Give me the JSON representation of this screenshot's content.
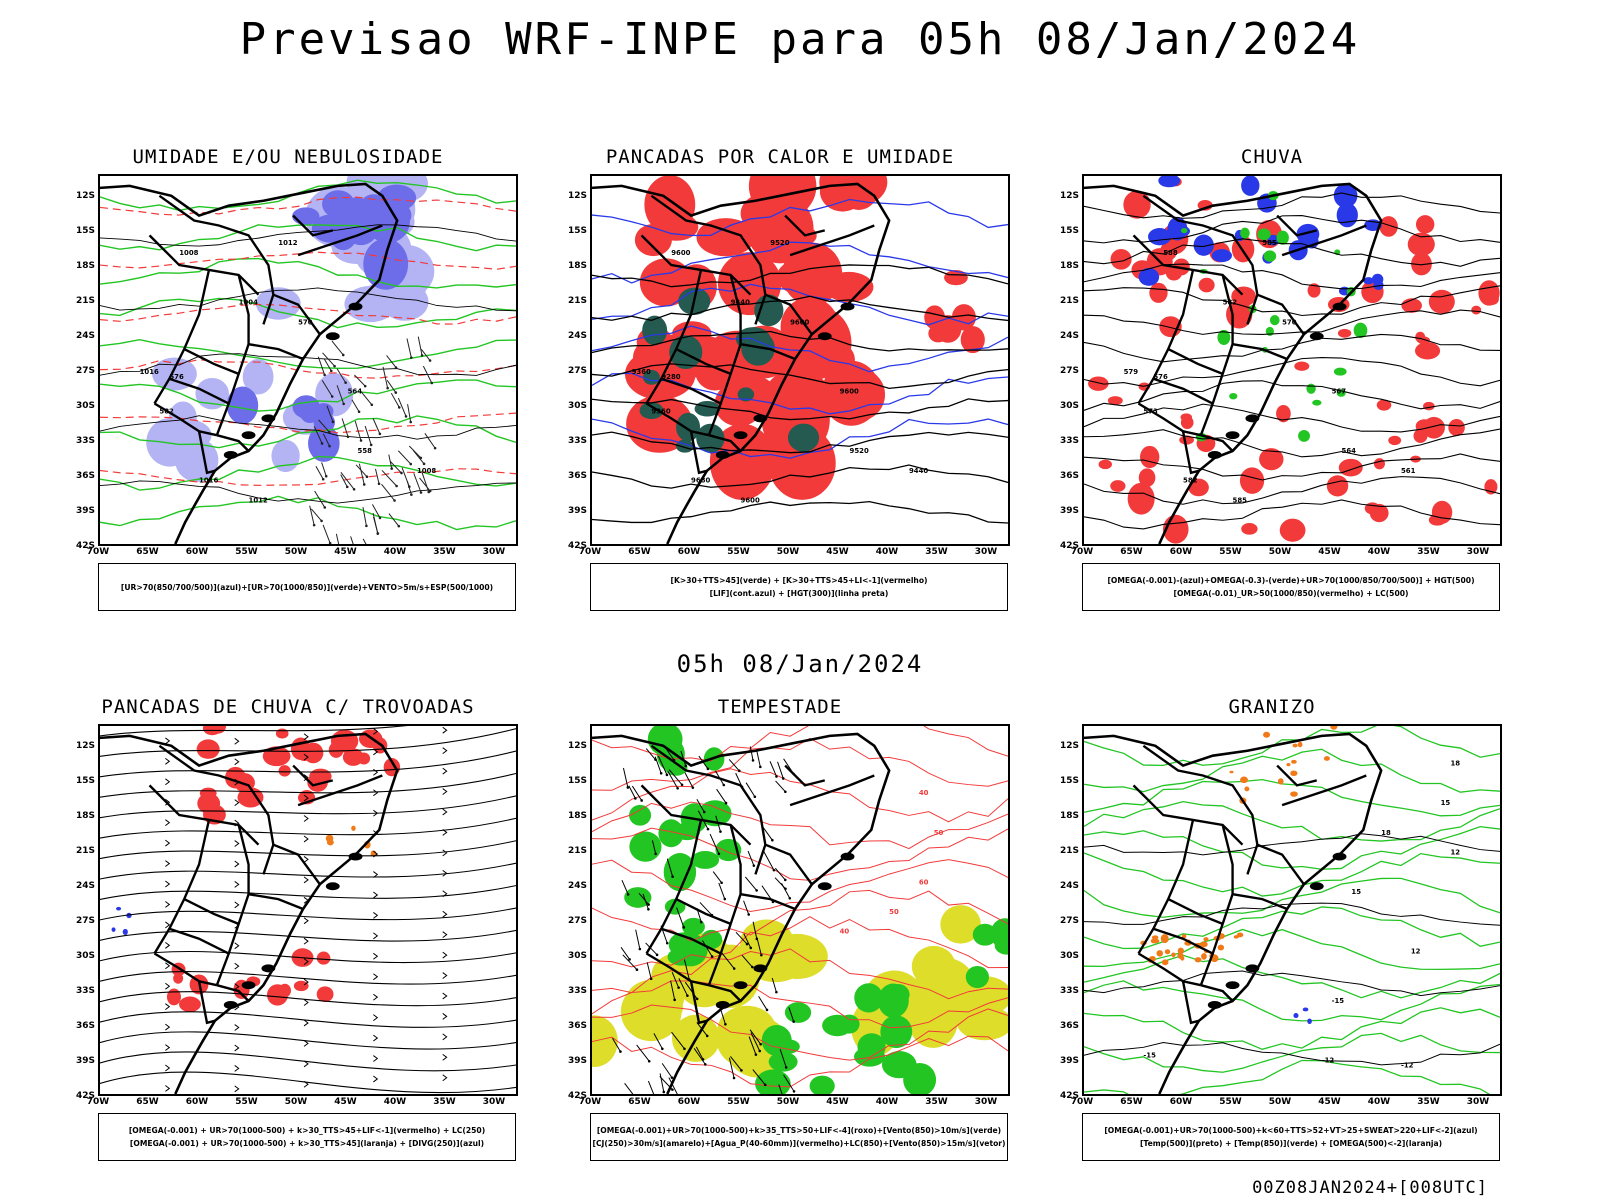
{
  "header": {
    "title": "Previsao WRF-INPE  para 05h 08/Jan/2024",
    "mid_time": "05h 08/Jan/2024",
    "run_id": "00Z08JAN2024+[008UTC]"
  },
  "axes": {
    "lat_labels": [
      "12S",
      "15S",
      "18S",
      "21S",
      "24S",
      "27S",
      "30S",
      "33S",
      "36S",
      "39S",
      "42S"
    ],
    "lon_labels": [
      "70W",
      "65W",
      "60W",
      "55W",
      "50W",
      "45W",
      "40W",
      "35W",
      "30W"
    ]
  },
  "colors": {
    "red": "#f23a3a",
    "blue": "#2a39e8",
    "light_blue": "#b4b4f5",
    "mid_blue": "#6d6dea",
    "green": "#22c522",
    "dark_green": "#245a50",
    "yellow": "#dedd2a",
    "orange": "#f07a18",
    "purple": "#9b27c0"
  },
  "panels": [
    {
      "title": "UMIDADE E/OU NEBULOSIDADE",
      "legend": [
        "[UR>70(850/700/500)](azul)+[UR>70(1000/850)](verde)+VENTO>5m/s+ESP(500/1000)"
      ],
      "contour_labels": [
        "1008",
        "1012",
        "1004",
        "1016",
        "576",
        "582",
        "570",
        "564",
        "558",
        "1008",
        "1012",
        "1016"
      ]
    },
    {
      "title": "PANCADAS POR CALOR E UMIDADE",
      "legend": [
        "[K>30+TTS>45](verde) + [K>30+TTS>45+LI<-1](vermelho)",
        "[LIF](cont.azul) + [HGT(300)](linha preta)"
      ],
      "contour_labels": [
        "9600",
        "9520",
        "9440",
        "9360",
        "9280",
        "9360",
        "9600",
        "9600",
        "9520",
        "9440",
        "9600",
        "9680"
      ]
    },
    {
      "title": "CHUVA",
      "legend": [
        "[OMEGA(-0.001)-(azul)+OMEGA(-0.3)-(verde)+UR>70(1000/850/700/500)] + HGT(500)",
        "[OMEGA(-0.01)_UR>50(1000/850)(vermelho) + LC(500)"
      ],
      "contour_labels": [
        "588",
        "585",
        "582",
        "579",
        "576",
        "573",
        "570",
        "567",
        "564",
        "561",
        "585",
        "582"
      ]
    },
    {
      "title": "PANCADAS DE CHUVA C/ TROVOADAS",
      "legend": [
        "[OMEGA(-0.001) + UR>70(1000-500) + k>30_TTS>45+LIF<-1](vermelho) + LC(250)",
        "[OMEGA(-0.001) + UR>70(1000-500) + k>30_TTS>45](laranja) + [DIVG(250)](azul)"
      ],
      "contour_labels": []
    },
    {
      "title": "TEMPESTADE",
      "legend": [
        "[OMEGA(-0.001)+UR>70(1000-500)+k>35_TTS>50+LIF<-4](roxo)+[Vento(850)>10m/s](verde)",
        "[CJ(250)>30m/s](amarelo)+[Agua_P(40-60mm)](vermelho)+LC(850)+[Vento(850)>15m/s](vetor)"
      ],
      "contour_labels": [
        "40",
        "50",
        "60",
        "40",
        "50"
      ]
    },
    {
      "title": "GRANIZO",
      "legend": [
        "[OMEGA(-0.001)+UR>70(1000-500)+k<60+TTS>52+VT>25+SWEAT>220+LIF<-2](azul)",
        "[Temp(500)](preto) + [Temp(850)](verde) + [OMEGA(500)<-2](laranja)"
      ],
      "contour_labels": [
        "-15",
        "-12",
        "-15",
        "18",
        "15",
        "12",
        "15",
        "18",
        "12",
        "-12"
      ]
    }
  ]
}
